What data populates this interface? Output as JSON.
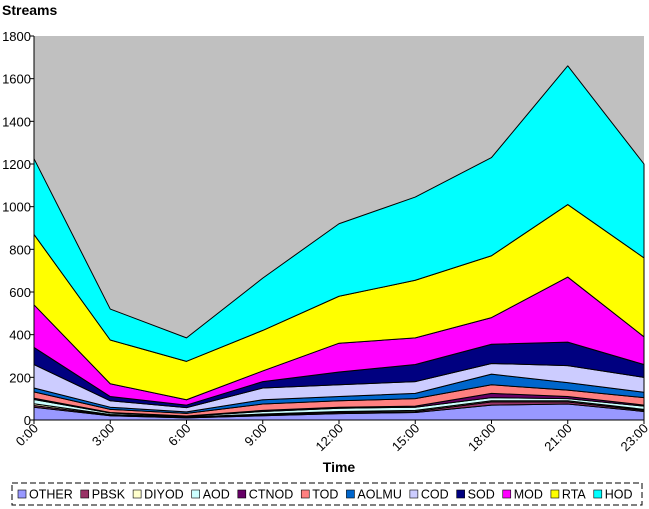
{
  "chart_data": {
    "type": "area",
    "stacked": true,
    "title": "",
    "ylabel": "Streams",
    "xlabel": "Time",
    "x": [
      "0:00",
      "3:00",
      "6:00",
      "9:00",
      "12:00",
      "15:00",
      "18:00",
      "21:00",
      "23:00"
    ],
    "ylim": [
      0,
      1800
    ],
    "yticks": [
      0,
      200,
      400,
      600,
      800,
      1000,
      1200,
      1400,
      1600,
      1800
    ],
    "grid": false,
    "plot_background": "#c0c0c0",
    "legend_position": "bottom",
    "series": [
      {
        "name": "OTHER",
        "color": "#9999ff",
        "values": [
          60,
          20,
          10,
          20,
          30,
          35,
          70,
          75,
          40
        ]
      },
      {
        "name": "PBSK",
        "color": "#993366",
        "values": [
          8,
          3,
          2,
          4,
          5,
          5,
          15,
          10,
          5
        ]
      },
      {
        "name": "DIYOD",
        "color": "#ffffcc",
        "values": [
          8,
          3,
          2,
          4,
          5,
          5,
          5,
          5,
          5
        ]
      },
      {
        "name": "AOD",
        "color": "#ccffff",
        "values": [
          20,
          7,
          3,
          12,
          15,
          15,
          15,
          10,
          15
        ]
      },
      {
        "name": "CTNOD",
        "color": "#660066",
        "values": [
          6,
          2,
          2,
          5,
          5,
          5,
          20,
          10,
          5
        ]
      },
      {
        "name": "TOD",
        "color": "#ff8080",
        "values": [
          30,
          15,
          12,
          30,
          30,
          35,
          40,
          30,
          35
        ]
      },
      {
        "name": "AOLMU",
        "color": "#0066cc",
        "values": [
          18,
          10,
          7,
          20,
          20,
          25,
          50,
          35,
          25
        ]
      },
      {
        "name": "COD",
        "color": "#ccccff",
        "values": [
          110,
          30,
          20,
          55,
          55,
          55,
          50,
          80,
          70
        ]
      },
      {
        "name": "SOD",
        "color": "#000080",
        "values": [
          80,
          20,
          12,
          30,
          60,
          80,
          90,
          110,
          60
        ]
      },
      {
        "name": "MOD",
        "color": "#ff00ff",
        "values": [
          200,
          60,
          25,
          50,
          135,
          125,
          125,
          305,
          130
        ]
      },
      {
        "name": "RTA",
        "color": "#ffff00",
        "values": [
          330,
          205,
          180,
          190,
          220,
          270,
          290,
          340,
          370
        ]
      },
      {
        "name": "HOD",
        "color": "#00ffff",
        "values": [
          355,
          145,
          110,
          245,
          340,
          390,
          460,
          650,
          440
        ]
      }
    ]
  }
}
